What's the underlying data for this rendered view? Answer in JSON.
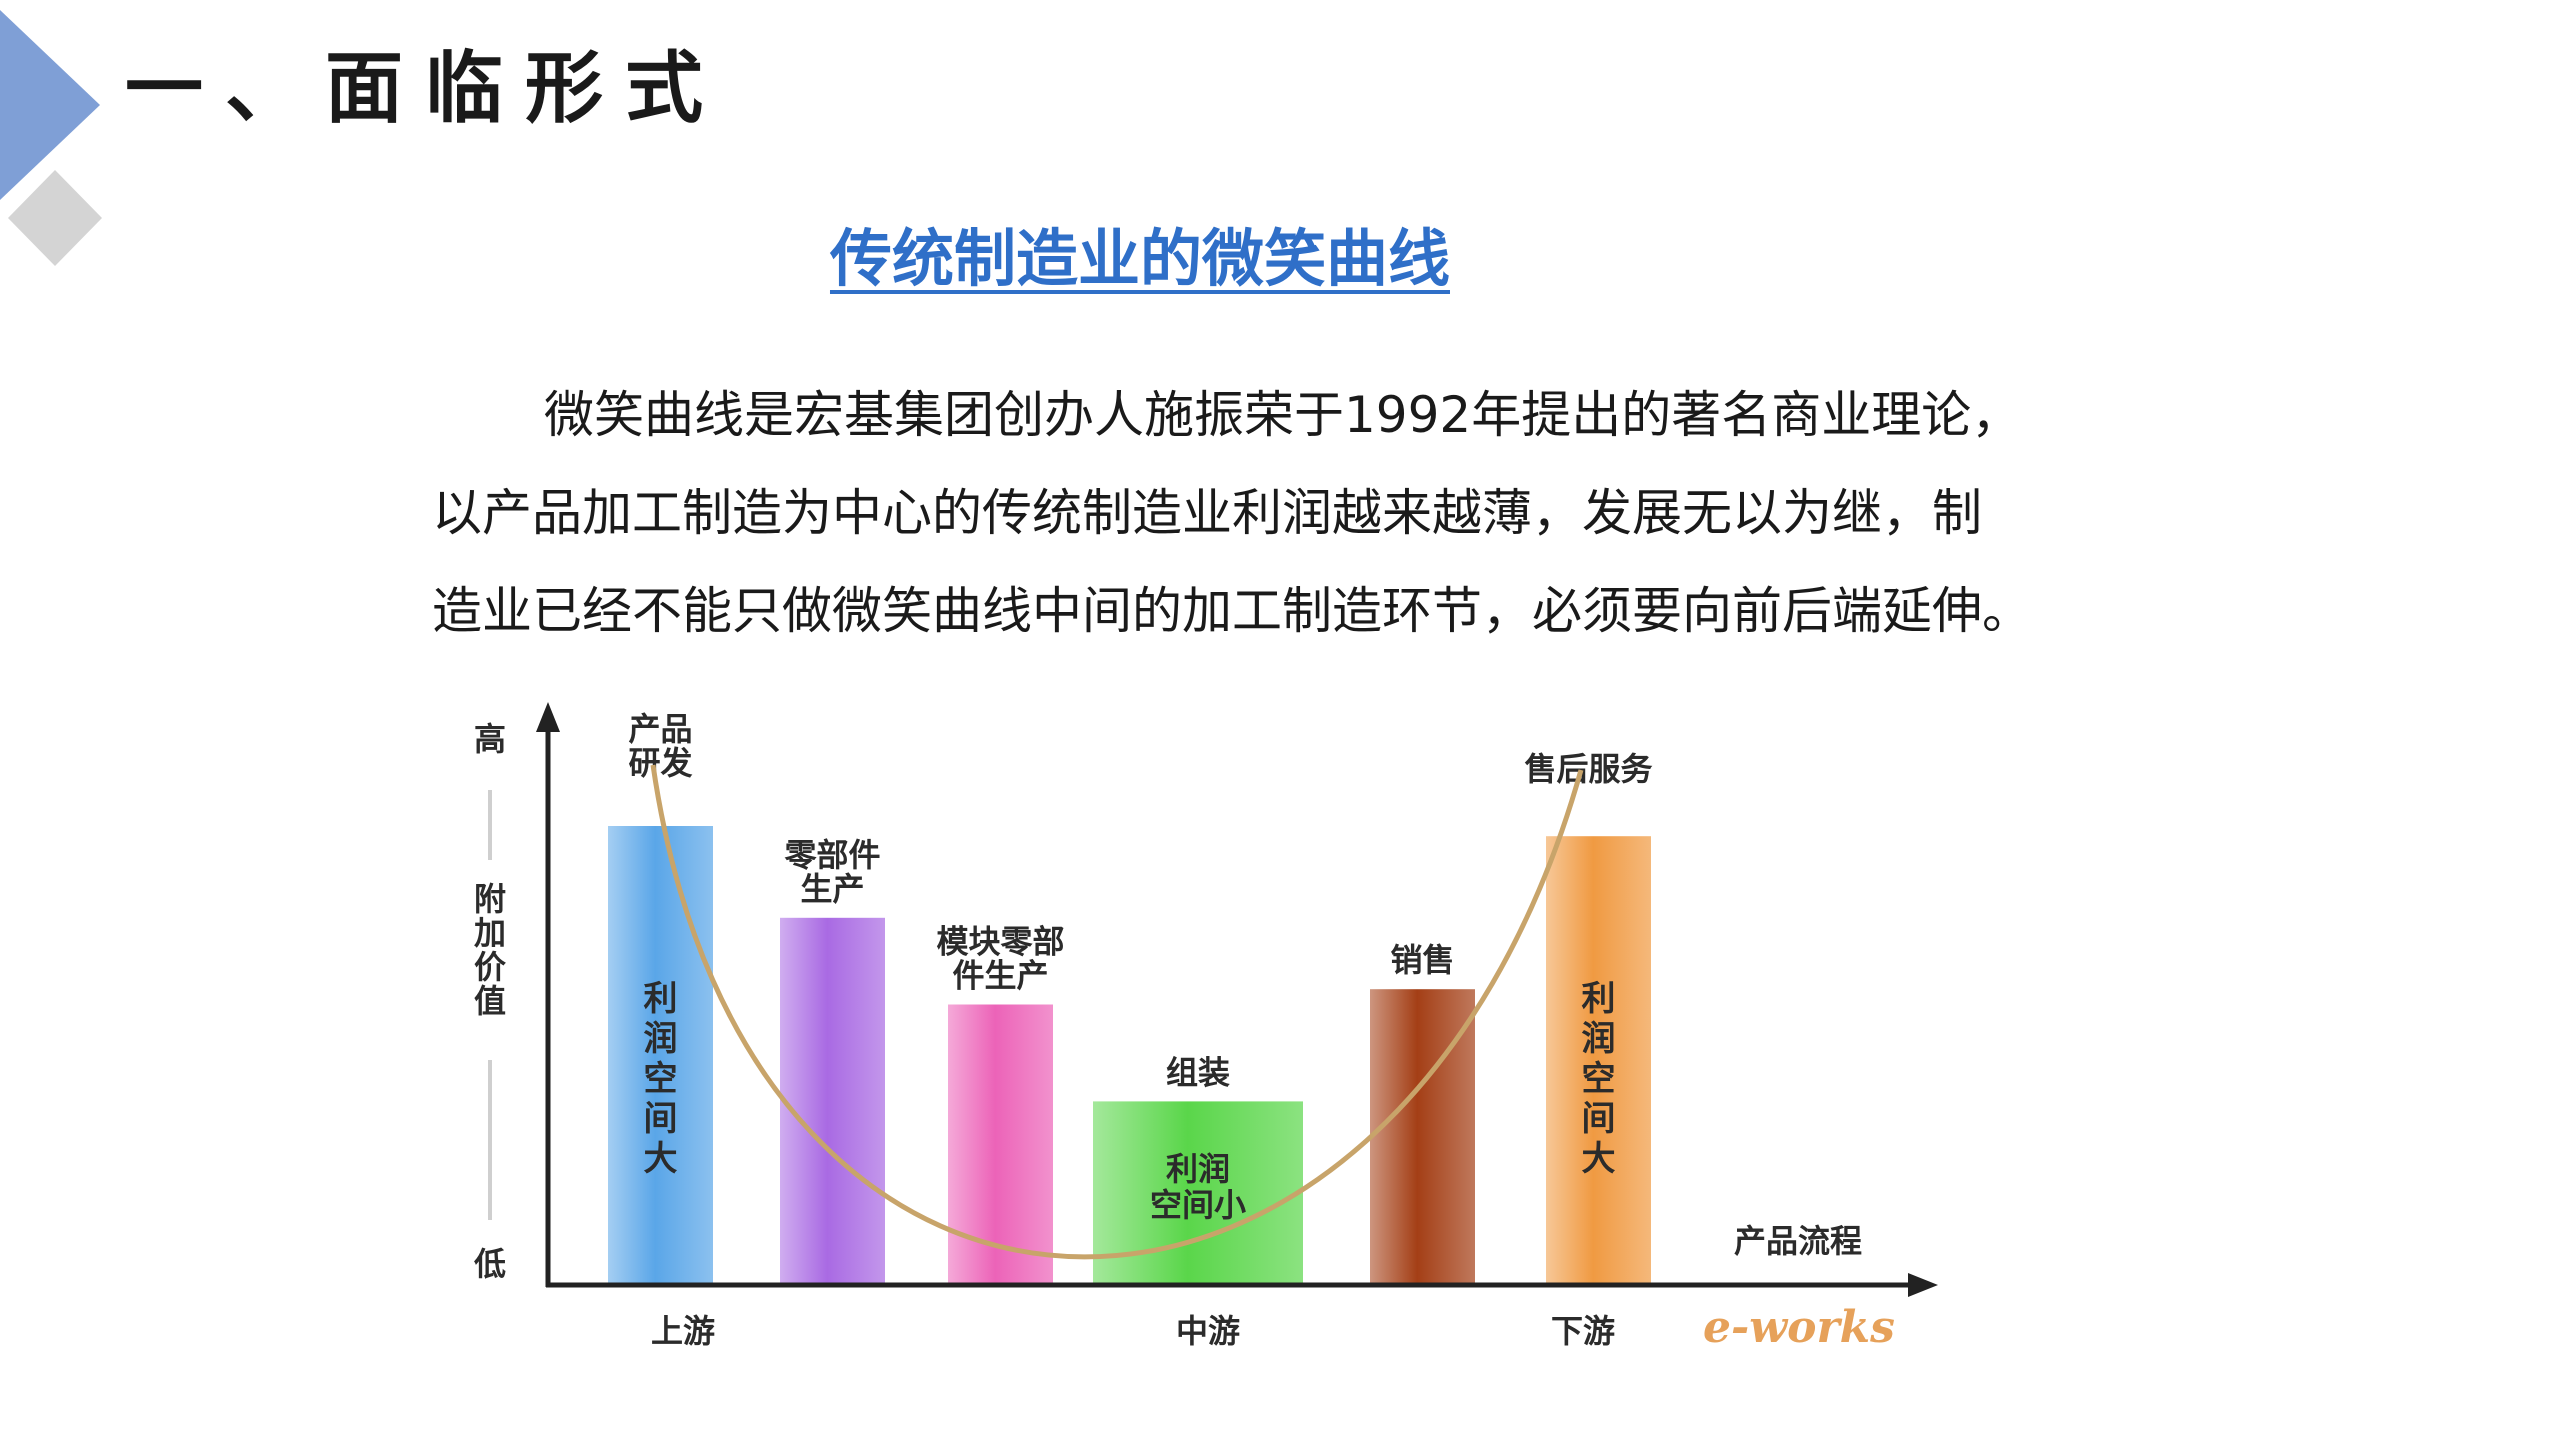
{
  "header": {
    "title": "一、面临形式"
  },
  "subtitle": "传统制造业的微笑曲线",
  "paragraph": {
    "lines": [
      "微笑曲线是宏基集团创办人施振荣于1992年提出的著名商业理论，",
      "以产品加工制造为中心的传统制造业利润越来越薄，发展无以为继，制",
      "造业已经不能只做微笑曲线中间的加工制造环节，必须要向前后端延伸。"
    ]
  },
  "chart_data": {
    "type": "bar",
    "categories": [
      "产品研发",
      "零部件生产",
      "模块零部件生产",
      "组装",
      "销售",
      "售后服务"
    ],
    "values": [
      90,
      72,
      55,
      36,
      58,
      88
    ],
    "colors": [
      "#5aa6e8",
      "#a96ae3",
      "#ec63b8",
      "#5ad64a",
      "#a43f16",
      "#f09a42"
    ],
    "ylim": [
      0,
      100
    ],
    "ylabel": "附加价值",
    "y_high_label": "高",
    "y_low_label": "低",
    "xlabel": "产品流程",
    "curve_color": "#c8a46a",
    "stage_labels": [
      "上游",
      "中游",
      "下游"
    ],
    "bar_labels": [
      [
        "产品",
        "研发"
      ],
      [
        "零部件",
        "生产"
      ],
      [
        "模块零部",
        "件生产"
      ],
      [
        "组装"
      ],
      [
        "销售"
      ],
      [
        "售后服务"
      ]
    ],
    "annotations": {
      "left_bar_inner": "利润空间大",
      "middle_bar_inner": [
        "利润",
        "空间小"
      ],
      "right_bar_inner": "利润空间大"
    },
    "watermark": "e-works"
  }
}
